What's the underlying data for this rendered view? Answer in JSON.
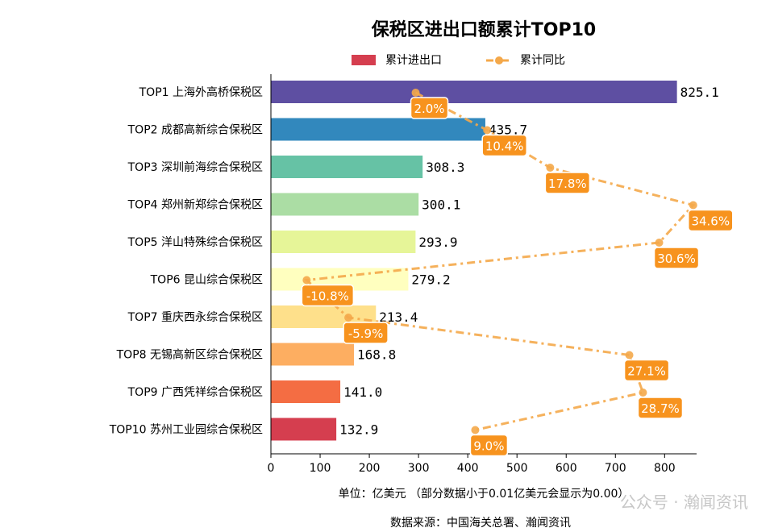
{
  "chart_data": {
    "type": "bar",
    "title": "保税区进出口额累计TOP10",
    "categories": [
      "TOP1 上海外高桥保税区",
      "TOP2 成都高新综合保税区",
      "TOP3 深圳前海综合保税区",
      "TOP4 郑州新郑综合保税区",
      "TOP5 洋山特殊综合保税区",
      "TOP6 昆山综合保税区",
      "TOP7 重庆西永综合保税区",
      "TOP8 无锡高新区综合保税区",
      "TOP9 广西凭祥综合保税区",
      "TOP10 苏州工业园综合保税区"
    ],
    "series": [
      {
        "name": "累计进出口",
        "values": [
          825.1,
          435.7,
          308.3,
          300.1,
          293.9,
          279.2,
          213.4,
          168.8,
          141.0,
          132.9
        ],
        "labels": [
          "825.1",
          "435.7",
          "308.3",
          "300.1",
          "293.9",
          "279.2",
          "213.4",
          "168.8",
          "141.0",
          "132.9"
        ],
        "colors": [
          "#5e4fa2",
          "#3288bd",
          "#66c2a5",
          "#abdda4",
          "#e6f598",
          "#ffffbf",
          "#fee08b",
          "#fdae61",
          "#f46d43",
          "#d53e4f"
        ]
      },
      {
        "name": "累计同比",
        "values": [
          2.0,
          10.4,
          17.8,
          34.6,
          30.6,
          -10.8,
          -5.9,
          27.1,
          28.7,
          9.0
        ],
        "labels": [
          "2.0%",
          "10.4%",
          "17.8%",
          "34.6%",
          "30.6%",
          "-10.8%",
          "-5.9%",
          "27.1%",
          "28.7%",
          "9.0%"
        ],
        "color": "#f4a84a",
        "label_bg": "#f7931e"
      }
    ],
    "xticks": [
      "0",
      "100",
      "200",
      "300",
      "400",
      "500",
      "600",
      "700",
      "800"
    ],
    "xlim": [
      0,
      865
    ],
    "pct_range": [
      -15,
      35
    ],
    "xlabel": "单位：亿美元 （部分数据小于0.01亿美元会显示为0.00）",
    "legend_position": "top",
    "grid": false
  },
  "footer": {
    "source": "数据来源：中国海关总署、瀚闻资讯",
    "watermark": "公众号 · 瀚闻资讯"
  }
}
